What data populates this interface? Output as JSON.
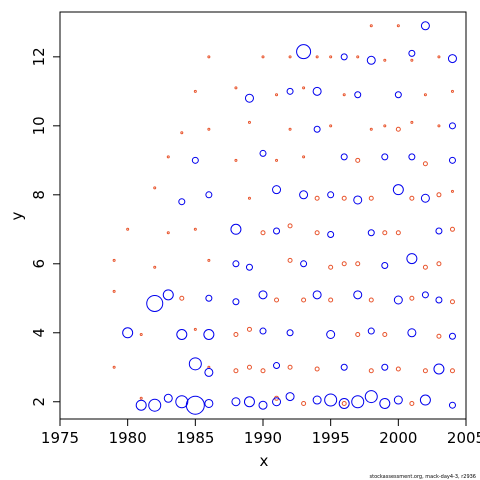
{
  "chart_data": {
    "type": "scatter",
    "title": "",
    "xlabel": "x",
    "ylabel": "y",
    "xlim": [
      1975,
      2005
    ],
    "ylim": [
      1.5,
      13.3
    ],
    "xticks": [
      1975,
      1980,
      1985,
      1990,
      1995,
      2000,
      2005
    ],
    "yticks": [
      2,
      4,
      6,
      8,
      10,
      12
    ],
    "grid": false,
    "legend": "none",
    "credit": "stockassessment.org, mack-day4-3, r2936",
    "series": [
      {
        "name": "",
        "color": "#0000ee",
        "marker": "circle-open",
        "points": [
          [
            1980,
            4.0,
            5
          ],
          [
            1981,
            1.9,
            5
          ],
          [
            1982,
            1.9,
            6
          ],
          [
            1982,
            4.85,
            8
          ],
          [
            1983,
            5.1,
            5
          ],
          [
            1983,
            2.1,
            4
          ],
          [
            1984,
            3.95,
            5
          ],
          [
            1984,
            2.0,
            6
          ],
          [
            1984,
            7.8,
            3
          ],
          [
            1985,
            1.9,
            9
          ],
          [
            1985,
            3.1,
            6
          ],
          [
            1985,
            9.0,
            3
          ],
          [
            1986,
            3.95,
            5
          ],
          [
            1986,
            2.85,
            4
          ],
          [
            1986,
            1.95,
            4
          ],
          [
            1986,
            5.0,
            3
          ],
          [
            1986,
            8.0,
            3
          ],
          [
            1988,
            7.0,
            5
          ],
          [
            1988,
            2.0,
            4
          ],
          [
            1988,
            4.9,
            3
          ],
          [
            1988,
            6.0,
            3
          ],
          [
            1989,
            2.0,
            5
          ],
          [
            1989,
            10.8,
            4
          ],
          [
            1989,
            5.9,
            3
          ],
          [
            1990,
            1.9,
            4
          ],
          [
            1990,
            5.1,
            4
          ],
          [
            1990,
            9.2,
            3
          ],
          [
            1990,
            4.05,
            3
          ],
          [
            1991,
            8.15,
            4
          ],
          [
            1991,
            2.0,
            4
          ],
          [
            1991,
            6.95,
            3
          ],
          [
            1991,
            3.05,
            3
          ],
          [
            1992,
            2.15,
            4
          ],
          [
            1992,
            4.0,
            3
          ],
          [
            1992,
            11.0,
            3
          ],
          [
            1993,
            12.15,
            7
          ],
          [
            1993,
            8.0,
            4
          ],
          [
            1993,
            6.0,
            3
          ],
          [
            1994,
            2.05,
            4
          ],
          [
            1994,
            5.1,
            4
          ],
          [
            1994,
            11.0,
            4
          ],
          [
            1994,
            9.9,
            3
          ],
          [
            1995,
            2.05,
            6
          ],
          [
            1995,
            3.95,
            4
          ],
          [
            1995,
            6.85,
            3
          ],
          [
            1995,
            8.0,
            3
          ],
          [
            1996,
            1.95,
            5
          ],
          [
            1996,
            9.1,
            3
          ],
          [
            1996,
            3.0,
            3
          ],
          [
            1996,
            12.0,
            3
          ],
          [
            1997,
            2.0,
            6
          ],
          [
            1997,
            7.85,
            4
          ],
          [
            1997,
            5.1,
            4
          ],
          [
            1997,
            10.9,
            3
          ],
          [
            1998,
            2.15,
            6
          ],
          [
            1998,
            11.9,
            4
          ],
          [
            1998,
            6.9,
            3
          ],
          [
            1998,
            4.05,
            3
          ],
          [
            1999,
            1.95,
            5
          ],
          [
            1999,
            9.1,
            3
          ],
          [
            1999,
            5.95,
            3
          ],
          [
            1999,
            3.0,
            3
          ],
          [
            2000,
            8.15,
            5
          ],
          [
            2000,
            2.05,
            4
          ],
          [
            2000,
            4.95,
            4
          ],
          [
            2000,
            10.9,
            3
          ],
          [
            2001,
            6.15,
            5
          ],
          [
            2001,
            4.0,
            4
          ],
          [
            2001,
            9.1,
            3
          ],
          [
            2001,
            12.1,
            3
          ],
          [
            2002,
            12.9,
            4
          ],
          [
            2002,
            2.05,
            5
          ],
          [
            2002,
            7.9,
            4
          ],
          [
            2002,
            5.1,
            3
          ],
          [
            2003,
            2.95,
            5
          ],
          [
            2003,
            6.95,
            3
          ],
          [
            2003,
            4.95,
            3
          ],
          [
            2004,
            11.95,
            4
          ],
          [
            2004,
            10.0,
            3
          ],
          [
            2004,
            3.9,
            3
          ],
          [
            2004,
            9.0,
            3
          ],
          [
            2004,
            1.9,
            3
          ]
        ]
      },
      {
        "name": "",
        "color": "#e8542c",
        "marker": "circle-open",
        "points": [
          [
            1979,
            5.2,
            1
          ],
          [
            1979,
            6.1,
            1
          ],
          [
            1979,
            3.0,
            1
          ],
          [
            1980,
            7.0,
            1
          ],
          [
            1981,
            3.95,
            1
          ],
          [
            1981,
            2.1,
            1
          ],
          [
            1982,
            5.9,
            1
          ],
          [
            1982,
            8.2,
            1
          ],
          [
            1983,
            9.1,
            1
          ],
          [
            1983,
            6.9,
            1
          ],
          [
            1984,
            9.8,
            1
          ],
          [
            1984,
            5.0,
            2
          ],
          [
            1985,
            11.0,
            1
          ],
          [
            1985,
            7.0,
            1
          ],
          [
            1985,
            4.1,
            1
          ],
          [
            1986,
            12.0,
            1
          ],
          [
            1986,
            9.9,
            1
          ],
          [
            1986,
            6.1,
            1
          ],
          [
            1986,
            3.0,
            1
          ],
          [
            1988,
            11.1,
            1
          ],
          [
            1988,
            9.0,
            1
          ],
          [
            1988,
            3.95,
            2
          ],
          [
            1988,
            2.9,
            2
          ],
          [
            1989,
            10.1,
            1
          ],
          [
            1989,
            7.9,
            1
          ],
          [
            1989,
            4.1,
            2
          ],
          [
            1989,
            3.0,
            2
          ],
          [
            1990,
            12.0,
            1
          ],
          [
            1990,
            6.9,
            2
          ],
          [
            1990,
            2.9,
            2
          ],
          [
            1991,
            10.9,
            1
          ],
          [
            1991,
            9.0,
            1
          ],
          [
            1991,
            4.95,
            2
          ],
          [
            1991,
            2.1,
            2
          ],
          [
            1992,
            12.0,
            1
          ],
          [
            1992,
            9.9,
            1
          ],
          [
            1992,
            7.1,
            2
          ],
          [
            1992,
            6.1,
            2
          ],
          [
            1992,
            3.0,
            2
          ],
          [
            1993,
            11.1,
            1
          ],
          [
            1993,
            9.1,
            1
          ],
          [
            1993,
            4.95,
            2
          ],
          [
            1993,
            1.95,
            2
          ],
          [
            1994,
            12.0,
            1
          ],
          [
            1994,
            7.9,
            2
          ],
          [
            1994,
            6.9,
            2
          ],
          [
            1994,
            2.95,
            2
          ],
          [
            1995,
            12.0,
            1
          ],
          [
            1995,
            10.0,
            1
          ],
          [
            1995,
            5.9,
            2
          ],
          [
            1995,
            4.95,
            2
          ],
          [
            1996,
            10.9,
            1
          ],
          [
            1996,
            7.9,
            2
          ],
          [
            1996,
            6.0,
            2
          ],
          [
            1996,
            1.95,
            2
          ],
          [
            1997,
            12.0,
            1
          ],
          [
            1997,
            9.0,
            2
          ],
          [
            1997,
            6.0,
            2
          ],
          [
            1997,
            3.95,
            2
          ],
          [
            1998,
            12.9,
            1
          ],
          [
            1998,
            9.9,
            1
          ],
          [
            1998,
            7.9,
            2
          ],
          [
            1998,
            4.95,
            2
          ],
          [
            1998,
            2.9,
            2
          ],
          [
            1999,
            11.9,
            1
          ],
          [
            1999,
            10.0,
            1
          ],
          [
            1999,
            6.9,
            2
          ],
          [
            1999,
            3.95,
            2
          ],
          [
            2000,
            12.9,
            1
          ],
          [
            2000,
            9.9,
            2
          ],
          [
            2000,
            6.9,
            2
          ],
          [
            2000,
            2.95,
            2
          ],
          [
            2001,
            11.9,
            1
          ],
          [
            2001,
            10.1,
            1
          ],
          [
            2001,
            7.9,
            2
          ],
          [
            2001,
            5.0,
            2
          ],
          [
            2001,
            1.95,
            2
          ],
          [
            2002,
            10.9,
            1
          ],
          [
            2002,
            8.9,
            2
          ],
          [
            2002,
            5.9,
            2
          ],
          [
            2002,
            2.9,
            2
          ],
          [
            2003,
            12.0,
            1
          ],
          [
            2003,
            10.0,
            1
          ],
          [
            2003,
            8.0,
            2
          ],
          [
            2003,
            6.0,
            2
          ],
          [
            2003,
            3.9,
            2
          ],
          [
            2004,
            11.0,
            1
          ],
          [
            2004,
            7.0,
            2
          ],
          [
            2004,
            4.9,
            2
          ],
          [
            2004,
            2.9,
            2
          ],
          [
            2004,
            8.1,
            1
          ]
        ]
      }
    ]
  }
}
